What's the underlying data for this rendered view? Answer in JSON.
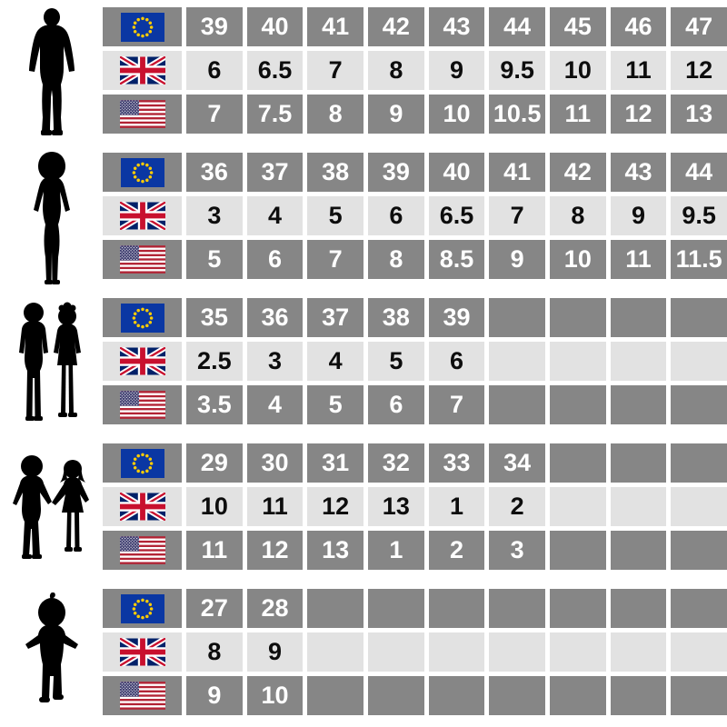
{
  "title": "shoe-size-conversion-chart",
  "colors": {
    "cell_dark": "#868686",
    "cell_light": "#e2e2e2",
    "text_on_dark": "#ffffff",
    "text_on_light": "#0d0d0d",
    "background": "#ffffff",
    "silhouette": "#000000",
    "eu_flag_blue": "#0a37a3",
    "eu_flag_star_yellow": "#ffcc00",
    "uk_flag_blue": "#012169",
    "uk_flag_red": "#C8102E",
    "us_flag_blue": "#3C3B6E",
    "us_flag_red": "#B22234"
  },
  "chart_data": {
    "type": "table",
    "title": "Shoe size conversion (EU / UK / US) by age group",
    "region_rows": [
      "EU",
      "UK",
      "US"
    ],
    "sections": [
      {
        "figure": "man",
        "rows": [
          {
            "flag": "eu",
            "values": [
              "39",
              "40",
              "41",
              "42",
              "43",
              "44",
              "45",
              "46",
              "47"
            ]
          },
          {
            "flag": "uk",
            "values": [
              "6",
              "6.5",
              "7",
              "8",
              "9",
              "9.5",
              "10",
              "11",
              "12"
            ]
          },
          {
            "flag": "us",
            "values": [
              "7",
              "7.5",
              "8",
              "9",
              "10",
              "10.5",
              "11",
              "12",
              "13"
            ]
          }
        ]
      },
      {
        "figure": "woman",
        "rows": [
          {
            "flag": "eu",
            "values": [
              "36",
              "37",
              "38",
              "39",
              "40",
              "41",
              "42",
              "43",
              "44"
            ]
          },
          {
            "flag": "uk",
            "values": [
              "3",
              "4",
              "5",
              "6",
              "6.5",
              "7",
              "8",
              "9",
              "9.5"
            ]
          },
          {
            "flag": "us",
            "values": [
              "5",
              "6",
              "7",
              "8",
              "8.5",
              "9",
              "10",
              "11",
              "11.5"
            ]
          }
        ]
      },
      {
        "figure": "children",
        "rows": [
          {
            "flag": "eu",
            "values": [
              "35",
              "36",
              "37",
              "38",
              "39",
              "",
              "",
              "",
              ""
            ]
          },
          {
            "flag": "uk",
            "values": [
              "2.5",
              "3",
              "4",
              "5",
              "6",
              "",
              "",
              "",
              ""
            ]
          },
          {
            "flag": "us",
            "values": [
              "3.5",
              "4",
              "5",
              "6",
              "7",
              "",
              "",
              "",
              ""
            ]
          }
        ]
      },
      {
        "figure": "young-children",
        "rows": [
          {
            "flag": "eu",
            "values": [
              "29",
              "30",
              "31",
              "32",
              "33",
              "34",
              "",
              "",
              ""
            ]
          },
          {
            "flag": "uk",
            "values": [
              "10",
              "11",
              "12",
              "13",
              "1",
              "2",
              "",
              "",
              ""
            ]
          },
          {
            "flag": "us",
            "values": [
              "11",
              "12",
              "13",
              "1",
              "2",
              "3",
              "",
              "",
              ""
            ]
          }
        ]
      },
      {
        "figure": "toddler",
        "rows": [
          {
            "flag": "eu",
            "values": [
              "27",
              "28",
              "",
              "",
              "",
              "",
              "",
              "",
              ""
            ]
          },
          {
            "flag": "uk",
            "values": [
              "8",
              "9",
              "",
              "",
              "",
              "",
              "",
              "",
              ""
            ]
          },
          {
            "flag": "us",
            "values": [
              "9",
              "10",
              "",
              "",
              "",
              "",
              "",
              "",
              ""
            ]
          }
        ]
      }
    ]
  }
}
